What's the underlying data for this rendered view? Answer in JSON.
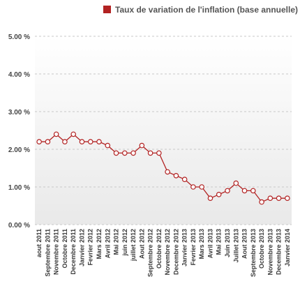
{
  "chart_data": {
    "type": "line",
    "title": "",
    "xlabel": "",
    "ylabel": "",
    "ylim": [
      0,
      5
    ],
    "y_ticks": [
      "0.00 %",
      "1.00 %",
      "2.00 %",
      "3.00 %",
      "4.00 %",
      "5.00 %"
    ],
    "y_tick_values": [
      0,
      1,
      2,
      3,
      4,
      5
    ],
    "grid": true,
    "legend_position": "top-right",
    "categories": [
      "aout 2011",
      "Septembre 2011",
      "Novembre 2011",
      "Octobre 2011",
      "Decembre 2011",
      "Janvier 2012",
      "Fevrier 2012",
      "Mars 2012",
      "Avril 2012",
      "Mai 2012",
      "juin 2012",
      "juillet 2012",
      "Aout 2012",
      "Septembre 2012",
      "Octobre 2012",
      "Novembre 2012",
      "Decembre 2012",
      "Janvier 2013",
      "Fevrier 2013",
      "Mars 2013",
      "Avril 2013",
      "Mai 2013",
      "Juin 2013",
      "Juillet 2013",
      "Aout 2013",
      "Septembre 2013",
      "Octobre 2013",
      "Novembre 2013",
      "Decembre 2013",
      "Janvier 2014"
    ],
    "series": [
      {
        "name": "Taux de variation de l'inflation (base annuelle)",
        "color": "#b22222",
        "values": [
          2.2,
          2.2,
          2.4,
          2.2,
          2.4,
          2.2,
          2.2,
          2.2,
          2.1,
          1.9,
          1.9,
          1.9,
          2.1,
          1.9,
          1.9,
          1.4,
          1.3,
          1.2,
          1.0,
          1.0,
          0.7,
          0.8,
          0.9,
          1.1,
          0.9,
          0.9,
          0.6,
          0.7,
          0.7,
          0.7
        ]
      }
    ]
  }
}
